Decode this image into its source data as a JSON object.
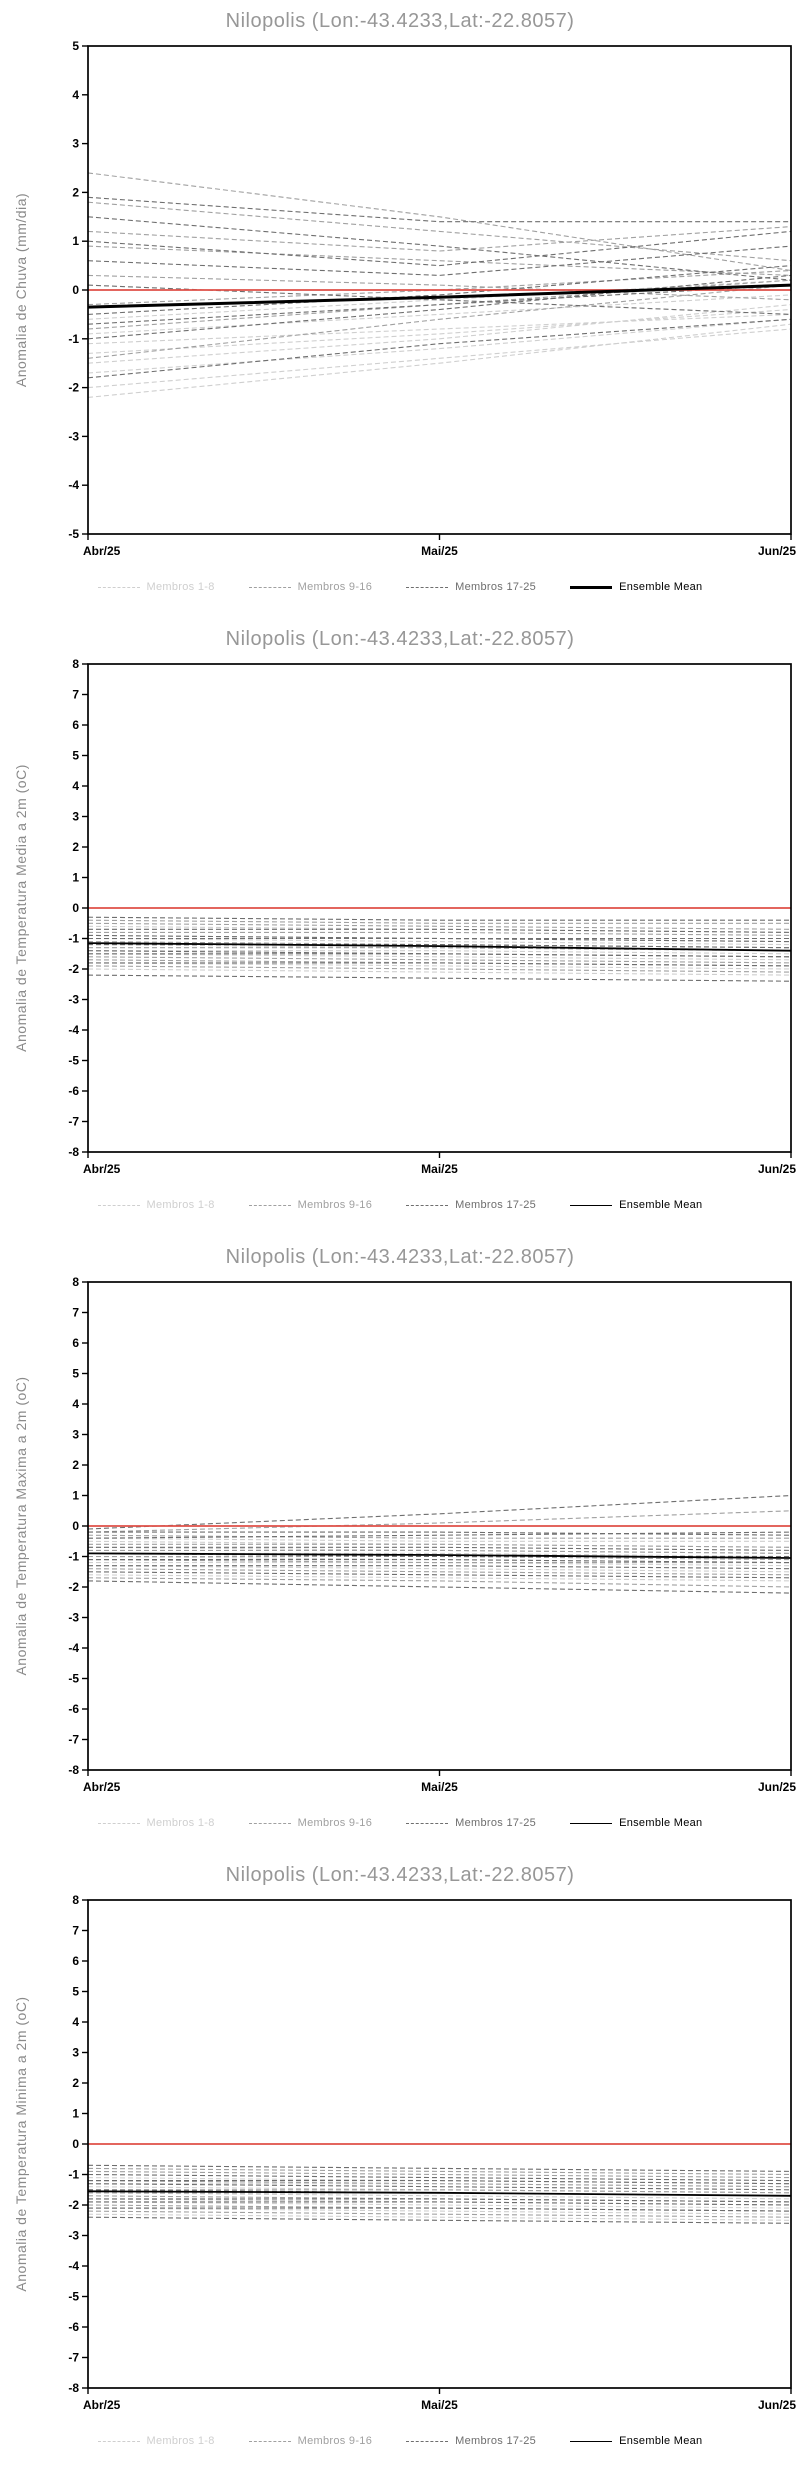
{
  "page": {
    "background": "#ffffff"
  },
  "legend": {
    "items": [
      {
        "label": "Membros 1-8",
        "color": "#cfcfcf",
        "dashed": true
      },
      {
        "label": "Membros 9-16",
        "color": "#a0a0a0",
        "dashed": true
      },
      {
        "label": "Membros 17-25",
        "color": "#6e6e6e",
        "dashed": true
      },
      {
        "label": "Ensemble Mean",
        "color": "#000000",
        "dashed": false
      }
    ]
  },
  "chart_data": [
    {
      "type": "line",
      "title": "Nilopolis (Lon:-43.4233,Lat:-22.8057)",
      "ylabel": "Anomalia de Chuva (mm/dia)",
      "ylim": [
        -5,
        5
      ],
      "ytick_step": 1,
      "x_labels": [
        "Abr/25",
        "Mai/25",
        "Jun/25"
      ],
      "zero_line": {
        "value": 0,
        "color": "#df4f47"
      },
      "mean_width": 3,
      "ensemble_mean": [
        -0.35,
        -0.15,
        0.1
      ],
      "groups": [
        {
          "name": "Membros 1-8",
          "color": "#cfcfcf",
          "series": [
            [
              -1.7,
              -1.2,
              -0.6
            ],
            [
              -2.0,
              -1.4,
              -0.8
            ],
            [
              -1.3,
              -0.9,
              -0.4
            ],
            [
              -0.9,
              -0.5,
              -0.1
            ],
            [
              -2.2,
              -1.5,
              -0.7
            ],
            [
              -1.1,
              -0.8,
              -0.5
            ],
            [
              -0.6,
              -0.2,
              0.2
            ],
            [
              -1.5,
              -1.0,
              -0.3
            ]
          ]
        },
        {
          "name": "Membros 9-16",
          "color": "#a0a0a0",
          "series": [
            [
              2.4,
              1.5,
              0.4
            ],
            [
              1.8,
              1.2,
              0.6
            ],
            [
              0.9,
              0.6,
              0.3
            ],
            [
              -0.3,
              0.0,
              0.4
            ],
            [
              -0.8,
              -0.3,
              0.2
            ],
            [
              1.2,
              0.8,
              1.3
            ],
            [
              -1.4,
              -0.6,
              0.1
            ],
            [
              0.3,
              0.1,
              -0.2
            ]
          ]
        },
        {
          "name": "Membros 17-25",
          "color": "#6e6e6e",
          "series": [
            [
              1.9,
              1.4,
              1.4
            ],
            [
              1.5,
              0.9,
              0.2
            ],
            [
              -0.5,
              -0.1,
              0.5
            ],
            [
              -1.0,
              -0.4,
              0.3
            ],
            [
              0.6,
              0.3,
              0.9
            ],
            [
              -1.8,
              -1.1,
              -0.6
            ],
            [
              0.1,
              -0.2,
              -0.5
            ],
            [
              -0.7,
              -0.3,
              0.1
            ],
            [
              1.0,
              0.5,
              1.2
            ]
          ]
        }
      ]
    },
    {
      "type": "line",
      "title": "Nilopolis (Lon:-43.4233,Lat:-22.8057)",
      "ylabel": "Anomalia de Temperatura Media a 2m (oC)",
      "ylim": [
        -8,
        8
      ],
      "ytick_step": 1,
      "x_labels": [
        "Abr/25",
        "Mai/25",
        "Jun/25"
      ],
      "zero_line": {
        "value": 0,
        "color": "#df4f47"
      },
      "mean_width": 1.8,
      "ensemble_mean": [
        -1.15,
        -1.25,
        -1.4
      ],
      "groups": [
        {
          "name": "Membros 1-8",
          "color": "#cfcfcf",
          "series": [
            [
              -1.5,
              -1.6,
              -1.7
            ],
            [
              -1.2,
              -1.3,
              -1.4
            ],
            [
              -0.9,
              -1.0,
              -1.1
            ],
            [
              -1.8,
              -1.9,
              -2.0
            ],
            [
              -0.6,
              -0.7,
              -0.8
            ],
            [
              -1.4,
              -1.4,
              -1.5
            ],
            [
              -1.0,
              -1.1,
              -1.2
            ],
            [
              -2.0,
              -2.1,
              -2.2
            ]
          ]
        },
        {
          "name": "Membros 9-16",
          "color": "#a0a0a0",
          "series": [
            [
              -0.4,
              -0.5,
              -0.5
            ],
            [
              -1.6,
              -1.7,
              -1.8
            ],
            [
              -1.1,
              -1.2,
              -1.3
            ],
            [
              -0.8,
              -0.8,
              -0.9
            ],
            [
              -1.9,
              -2.0,
              -2.1
            ],
            [
              -1.3,
              -1.3,
              -1.4
            ],
            [
              -0.5,
              -0.6,
              -0.7
            ],
            [
              -1.7,
              -1.8,
              -1.9
            ]
          ]
        },
        {
          "name": "Membros 17-25",
          "color": "#6e6e6e",
          "series": [
            [
              -2.2,
              -2.3,
              -2.4
            ],
            [
              -0.7,
              -0.7,
              -0.8
            ],
            [
              -1.2,
              -1.2,
              -1.3
            ],
            [
              -1.5,
              -1.5,
              -1.6
            ],
            [
              -0.9,
              -1.0,
              -1.0
            ],
            [
              -1.8,
              -1.8,
              -1.9
            ],
            [
              -1.0,
              -1.0,
              -1.1
            ],
            [
              -1.4,
              -1.5,
              -1.6
            ],
            [
              -0.3,
              -0.4,
              -0.4
            ]
          ]
        }
      ]
    },
    {
      "type": "line",
      "title": "Nilopolis (Lon:-43.4233,Lat:-22.8057)",
      "ylabel": "Anomalia de Temperatura Maxima a 2m (oC)",
      "ylim": [
        -8,
        8
      ],
      "ytick_step": 1,
      "x_labels": [
        "Abr/25",
        "Mai/25",
        "Jun/25"
      ],
      "zero_line": {
        "value": 0,
        "color": "#df4f47"
      },
      "mean_width": 1.8,
      "ensemble_mean": [
        -0.9,
        -0.95,
        -1.05
      ],
      "groups": [
        {
          "name": "Membros 1-8",
          "color": "#cfcfcf",
          "series": [
            [
              -1.0,
              -1.1,
              -1.2
            ],
            [
              -0.7,
              -0.8,
              -0.9
            ],
            [
              -1.3,
              -1.4,
              -1.5
            ],
            [
              -0.4,
              -0.5,
              -0.5
            ],
            [
              -1.6,
              -1.7,
              -1.8
            ],
            [
              -0.9,
              -0.9,
              -1.0
            ],
            [
              -1.2,
              -1.2,
              -1.3
            ],
            [
              -0.5,
              -0.6,
              -0.7
            ]
          ]
        },
        {
          "name": "Membros 9-16",
          "color": "#a0a0a0",
          "series": [
            [
              -0.2,
              0.1,
              0.5
            ],
            [
              -1.4,
              -1.5,
              -1.6
            ],
            [
              -0.8,
              -0.8,
              -0.9
            ],
            [
              -1.1,
              -1.2,
              -1.2
            ],
            [
              -0.3,
              -0.4,
              -0.4
            ],
            [
              -1.7,
              -1.8,
              -2.0
            ],
            [
              -0.6,
              -0.6,
              -0.7
            ],
            [
              -1.0,
              -1.0,
              -1.1
            ]
          ]
        },
        {
          "name": "Membros 17-25",
          "color": "#6e6e6e",
          "series": [
            [
              -0.1,
              0.4,
              1.0
            ],
            [
              -1.8,
              -2.0,
              -2.2
            ],
            [
              -0.9,
              -1.0,
              -1.0
            ],
            [
              -1.3,
              -1.3,
              -1.4
            ],
            [
              -0.4,
              -0.3,
              -0.2
            ],
            [
              -1.5,
              -1.6,
              -1.7
            ],
            [
              -0.7,
              -0.7,
              -0.8
            ],
            [
              -1.1,
              -1.1,
              -1.2
            ],
            [
              -0.2,
              -0.2,
              -0.3
            ]
          ]
        }
      ]
    },
    {
      "type": "line",
      "title": "Nilopolis (Lon:-43.4233,Lat:-22.8057)",
      "ylabel": "Anomalia de Temperatura Minima a 2m (oC)",
      "ylim": [
        -8,
        8
      ],
      "ytick_step": 1,
      "x_labels": [
        "Abr/25",
        "Mai/25",
        "Jun/25"
      ],
      "zero_line": {
        "value": 0,
        "color": "#df4f47"
      },
      "mean_width": 1.8,
      "ensemble_mean": [
        -1.55,
        -1.6,
        -1.7
      ],
      "groups": [
        {
          "name": "Membros 1-8",
          "color": "#cfcfcf",
          "series": [
            [
              -1.8,
              -1.9,
              -2.0
            ],
            [
              -1.4,
              -1.5,
              -1.6
            ],
            [
              -2.1,
              -2.2,
              -2.3
            ],
            [
              -1.1,
              -1.2,
              -1.3
            ],
            [
              -1.6,
              -1.7,
              -1.8
            ],
            [
              -2.3,
              -2.4,
              -2.5
            ],
            [
              -1.3,
              -1.3,
              -1.4
            ],
            [
              -1.9,
              -2.0,
              -2.1
            ]
          ]
        },
        {
          "name": "Membros 9-16",
          "color": "#a0a0a0",
          "series": [
            [
              -0.8,
              -0.9,
              -1.0
            ],
            [
              -1.7,
              -1.8,
              -1.9
            ],
            [
              -1.2,
              -1.3,
              -1.4
            ],
            [
              -2.0,
              -2.1,
              -2.2
            ],
            [
              -1.5,
              -1.5,
              -1.6
            ],
            [
              -0.9,
              -1.0,
              -1.1
            ],
            [
              -2.2,
              -2.3,
              -2.4
            ],
            [
              -1.6,
              -1.6,
              -1.7
            ]
          ]
        },
        {
          "name": "Membros 17-25",
          "color": "#6e6e6e",
          "series": [
            [
              -2.4,
              -2.5,
              -2.6
            ],
            [
              -1.0,
              -1.1,
              -1.2
            ],
            [
              -1.8,
              -1.8,
              -1.9
            ],
            [
              -1.3,
              -1.4,
              -1.5
            ],
            [
              -2.1,
              -2.1,
              -2.2
            ],
            [
              -1.5,
              -1.6,
              -1.7
            ],
            [
              -0.7,
              -0.8,
              -0.9
            ],
            [
              -1.9,
              -1.9,
              -2.0
            ],
            [
              -1.2,
              -1.2,
              -1.3
            ]
          ]
        }
      ]
    }
  ]
}
